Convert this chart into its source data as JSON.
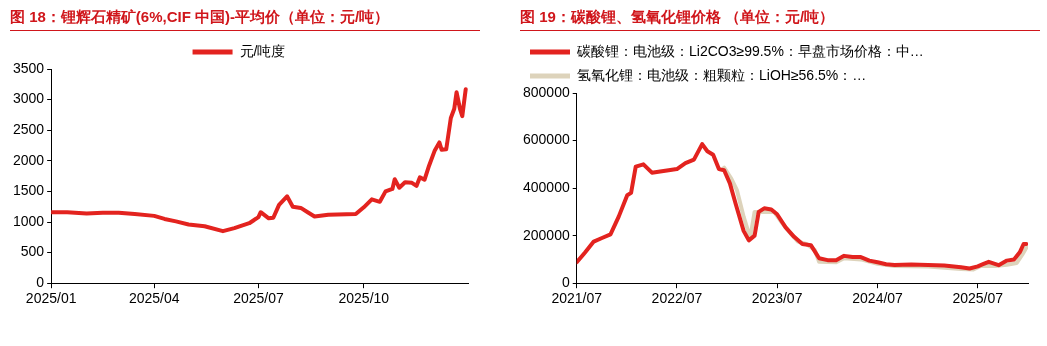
{
  "chart_data": [
    {
      "type": "line",
      "title": "图 18：锂辉石精矿(6%,CIF 中国)-平均价（单位：元/吨）",
      "legend": "top",
      "marker": "none",
      "grid": false,
      "xlim": [
        "2025-01-01",
        "2025-12-31"
      ],
      "xticks": [
        {
          "value": "2025-01-01",
          "label": "2025/01"
        },
        {
          "value": "2025-04-01",
          "label": "2025/04"
        },
        {
          "value": "2025-07-01",
          "label": "2025/07"
        },
        {
          "value": "2025-10-01",
          "label": "2025/10"
        }
      ],
      "ylim": [
        0,
        3500
      ],
      "yticks": [
        0,
        500,
        1000,
        1500,
        2000,
        2500,
        3000,
        3500
      ],
      "series": [
        {
          "name": "元/吨度",
          "color": "#e3231f",
          "x": [
            "2025-01-01",
            "2025-01-15",
            "2025-02-01",
            "2025-02-15",
            "2025-03-01",
            "2025-03-15",
            "2025-04-01",
            "2025-04-10",
            "2025-04-20",
            "2025-05-01",
            "2025-05-15",
            "2025-05-31",
            "2025-06-10",
            "2025-06-23",
            "2025-07-01",
            "2025-07-03",
            "2025-07-10",
            "2025-07-14",
            "2025-07-19",
            "2025-07-26",
            "2025-07-31",
            "2025-08-07",
            "2025-08-13",
            "2025-08-19",
            "2025-08-31",
            "2025-09-24",
            "2025-10-01",
            "2025-10-08",
            "2025-10-15",
            "2025-10-20",
            "2025-10-26",
            "2025-10-28",
            "2025-11-01",
            "2025-11-06",
            "2025-11-12",
            "2025-11-16",
            "2025-11-19",
            "2025-11-23",
            "2025-11-27",
            "2025-12-02",
            "2025-12-06",
            "2025-12-08",
            "2025-12-12",
            "2025-12-16",
            "2025-12-19",
            "2025-12-21",
            "2025-12-24",
            "2025-12-26",
            "2025-12-29"
          ],
          "values": [
            1160,
            1160,
            1140,
            1150,
            1150,
            1130,
            1100,
            1050,
            1010,
            960,
            930,
            850,
            900,
            980,
            1080,
            1160,
            1060,
            1070,
            1280,
            1420,
            1250,
            1230,
            1160,
            1090,
            1120,
            1130,
            1240,
            1370,
            1330,
            1500,
            1540,
            1700,
            1560,
            1650,
            1640,
            1590,
            1730,
            1690,
            1920,
            2170,
            2300,
            2180,
            2190,
            2700,
            2850,
            3120,
            2850,
            2730,
            3170
          ]
        }
      ]
    },
    {
      "type": "line",
      "title": "图 19：碳酸锂、氢氧化锂价格 （单位：元/吨）",
      "legend": "top left",
      "marker": "none",
      "grid": false,
      "xlim": [
        "2021-07-01",
        "2025-12-31"
      ],
      "xticks": [
        {
          "value": "2021-07-01",
          "label": "2021/07"
        },
        {
          "value": "2022-07-01",
          "label": "2022/07"
        },
        {
          "value": "2023-07-01",
          "label": "2023/07"
        },
        {
          "value": "2024-07-01",
          "label": "2024/07"
        },
        {
          "value": "2025-07-01",
          "label": "2025/07"
        }
      ],
      "ylim": [
        0,
        800000
      ],
      "yticks": [
        0,
        200000,
        400000,
        600000,
        800000
      ],
      "series": [
        {
          "name": "碳酸锂：电池级：Li2CO3≥99.5%：早盘市场价格：中…",
          "color": "#e3231f",
          "x": [
            "2021-07-01",
            "2021-08-01",
            "2021-09-01",
            "2021-10-01",
            "2021-11-01",
            "2021-12-01",
            "2022-01-01",
            "2022-01-15",
            "2022-02-01",
            "2022-03-01",
            "2022-04-01",
            "2022-05-01",
            "2022-06-01",
            "2022-07-01",
            "2022-08-01",
            "2022-09-01",
            "2022-10-01",
            "2022-10-20",
            "2022-11-10",
            "2022-12-01",
            "2022-12-20",
            "2023-01-10",
            "2023-02-01",
            "2023-03-01",
            "2023-03-20",
            "2023-04-10",
            "2023-04-25",
            "2023-05-15",
            "2023-06-10",
            "2023-07-01",
            "2023-08-01",
            "2023-09-01",
            "2023-10-01",
            "2023-11-01",
            "2023-12-01",
            "2024-01-01",
            "2024-02-01",
            "2024-03-01",
            "2024-04-01",
            "2024-05-01",
            "2024-06-01",
            "2024-07-01",
            "2024-08-01",
            "2024-09-01",
            "2024-10-01",
            "2024-11-01",
            "2025-01-01",
            "2025-03-01",
            "2025-05-01",
            "2025-06-01",
            "2025-07-01",
            "2025-07-20",
            "2025-08-10",
            "2025-09-15",
            "2025-10-15",
            "2025-11-10",
            "2025-12-01",
            "2025-12-15",
            "2025-12-25"
          ],
          "values": [
            88000,
            130000,
            175000,
            190000,
            205000,
            280000,
            370000,
            380000,
            490000,
            500000,
            465000,
            470000,
            475000,
            480000,
            505000,
            520000,
            585000,
            555000,
            540000,
            480000,
            475000,
            420000,
            330000,
            220000,
            180000,
            200000,
            300000,
            315000,
            310000,
            290000,
            235000,
            195000,
            165000,
            160000,
            105000,
            97000,
            97000,
            115000,
            110000,
            110000,
            95000,
            88000,
            80000,
            77000,
            78000,
            79000,
            77000,
            74000,
            67000,
            62000,
            71000,
            80000,
            90000,
            76000,
            95000,
            100000,
            130000,
            165000,
            165000
          ]
        },
        {
          "name": "氢氧化锂：电池级：粗颗粒：LiOH≥56.5%：…",
          "color": "#ddd3bb",
          "x": [
            "2022-12-20",
            "2023-01-15",
            "2023-02-05",
            "2023-03-01",
            "2023-03-25",
            "2023-04-10",
            "2023-05-15",
            "2023-06-20",
            "2023-07-15",
            "2023-08-15",
            "2023-09-15",
            "2023-10-15",
            "2023-11-15",
            "2023-12-01",
            "2024-02-01",
            "2024-03-01",
            "2024-05-01",
            "2024-07-01",
            "2024-09-01",
            "2025-01-01",
            "2025-05-01",
            "2025-06-15",
            "2025-07-10",
            "2025-09-01",
            "2025-10-15",
            "2025-11-20",
            "2025-12-10",
            "2025-12-25"
          ],
          "values": [
            486000,
            440000,
            390000,
            280000,
            190000,
            300000,
            300000,
            300000,
            260000,
            215000,
            175000,
            165000,
            140000,
            90000,
            88000,
            105000,
            100000,
            82000,
            72000,
            70000,
            60000,
            58000,
            72000,
            72000,
            78000,
            85000,
            120000,
            150000
          ]
        }
      ]
    }
  ]
}
